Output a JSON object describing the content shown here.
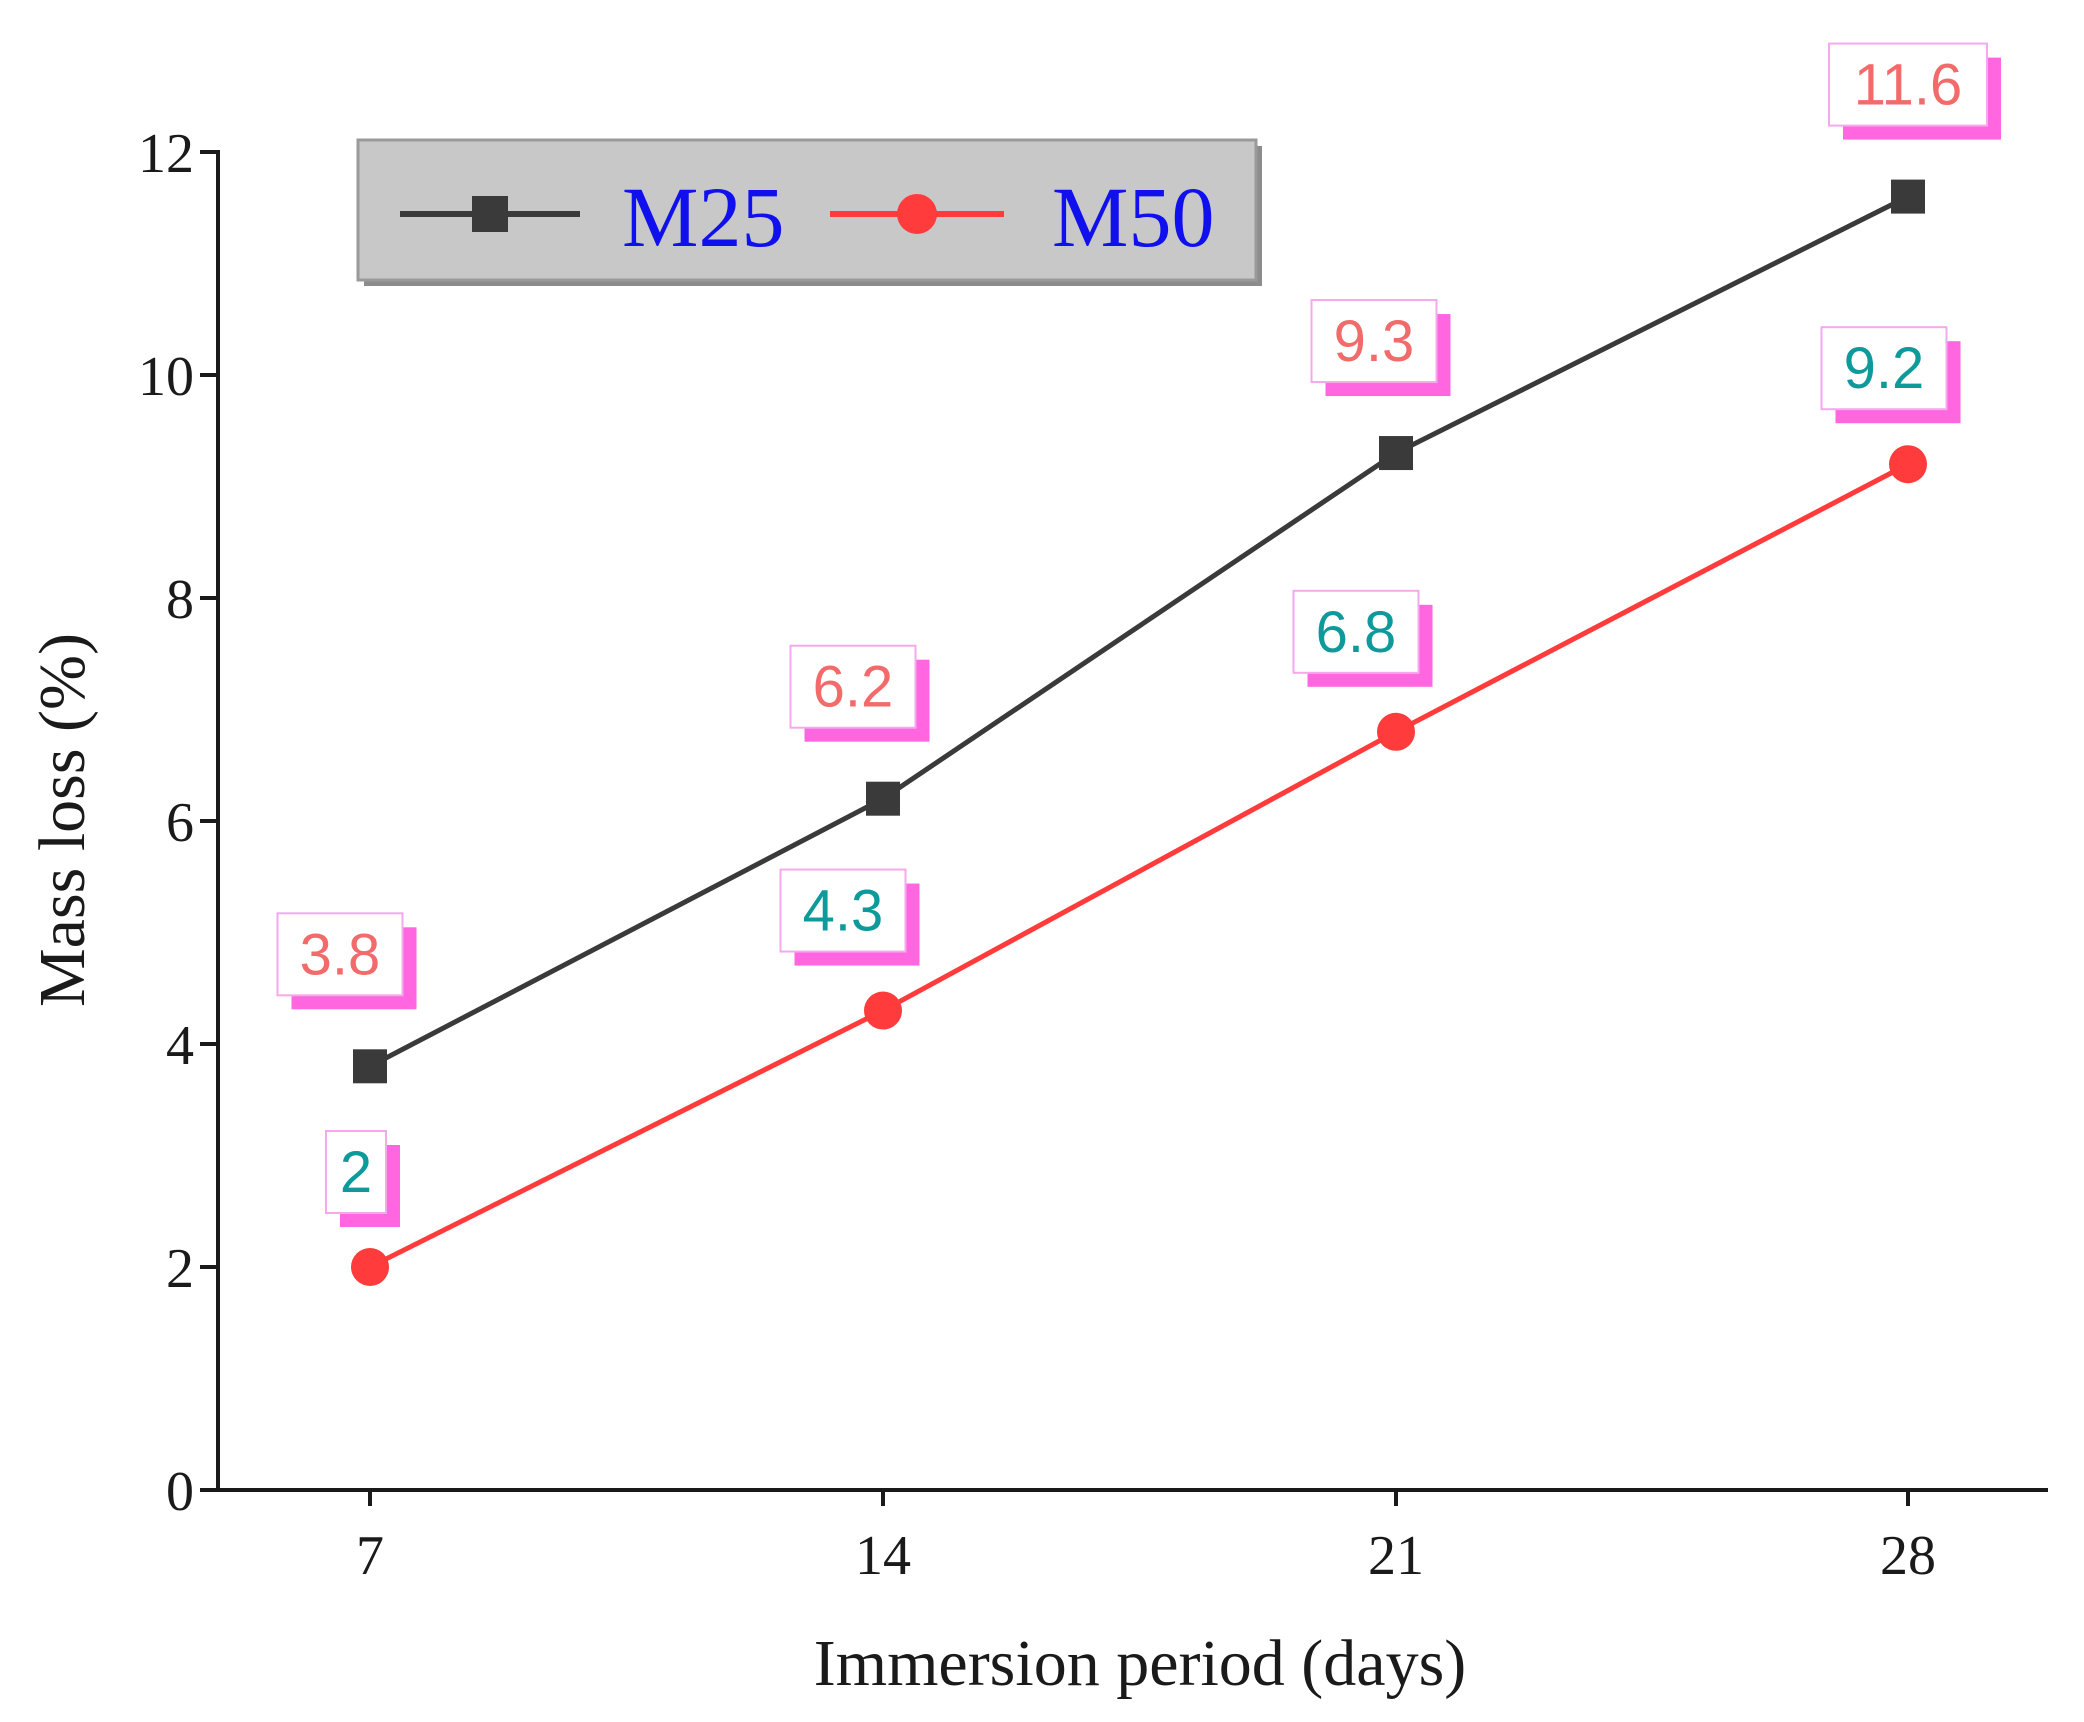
{
  "chart_data": {
    "type": "line",
    "title": "",
    "xlabel": "Immersion period (days)",
    "ylabel": "Mass loss (%)",
    "categories": [
      "7",
      "14",
      "21",
      "28"
    ],
    "ylim": [
      0,
      12
    ],
    "yticks": [
      "0",
      "2",
      "4",
      "6",
      "8",
      "10",
      "12"
    ],
    "grid": false,
    "legend_position": "top-left",
    "series": [
      {
        "name": "M25",
        "values": [
          3.8,
          6.2,
          9.3,
          11.6
        ],
        "labels": [
          "3.8",
          "6.2",
          "9.3",
          "11.6"
        ],
        "marker": "square",
        "color": "#3a3a3a",
        "label_color": "#f26a6a"
      },
      {
        "name": "M50",
        "values": [
          2,
          4.3,
          6.8,
          9.2
        ],
        "labels": [
          "2",
          "4.3",
          "6.8",
          "9.2"
        ],
        "marker": "circle",
        "color": "#ff3b3b",
        "label_color": "#0e9a9a"
      }
    ],
    "label_box_shadow_color": "#ff66e0"
  }
}
